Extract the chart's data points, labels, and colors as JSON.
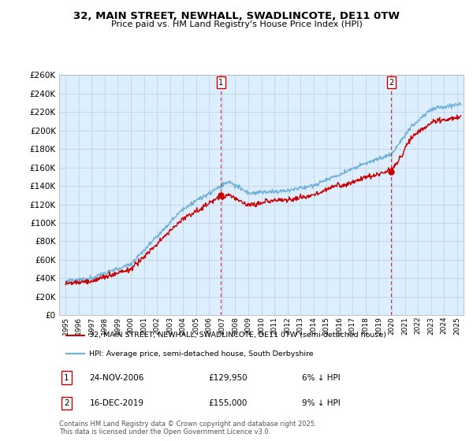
{
  "title": "32, MAIN STREET, NEWHALL, SWADLINCOTE, DE11 0TW",
  "subtitle": "Price paid vs. HM Land Registry's House Price Index (HPI)",
  "legend_line1": "32, MAIN STREET, NEWHALL, SWADLINCOTE, DE11 0TW (semi-detached house)",
  "legend_line2": "HPI: Average price, semi-detached house, South Derbyshire",
  "footnote": "Contains HM Land Registry data © Crown copyright and database right 2025.\nThis data is licensed under the Open Government Licence v3.0.",
  "annotation1_date": "24-NOV-2006",
  "annotation1_price": "£129,950",
  "annotation1_hpi": "6% ↓ HPI",
  "annotation2_date": "16-DEC-2019",
  "annotation2_price": "£155,000",
  "annotation2_hpi": "9% ↓ HPI",
  "sale1_x": 2006.9,
  "sale1_y": 129950,
  "sale2_x": 2019.96,
  "sale2_y": 155000,
  "hpi_color": "#6baed6",
  "price_color": "#cc0000",
  "annotation_line_color": "#cc0000",
  "chart_bg_color": "#ddeeff",
  "background_color": "#ffffff",
  "grid_color": "#bbccdd",
  "ylim": [
    0,
    260000
  ],
  "xlim": [
    1994.5,
    2025.5
  ],
  "yticks": [
    0,
    20000,
    40000,
    60000,
    80000,
    100000,
    120000,
    140000,
    160000,
    180000,
    200000,
    220000,
    240000,
    260000
  ]
}
